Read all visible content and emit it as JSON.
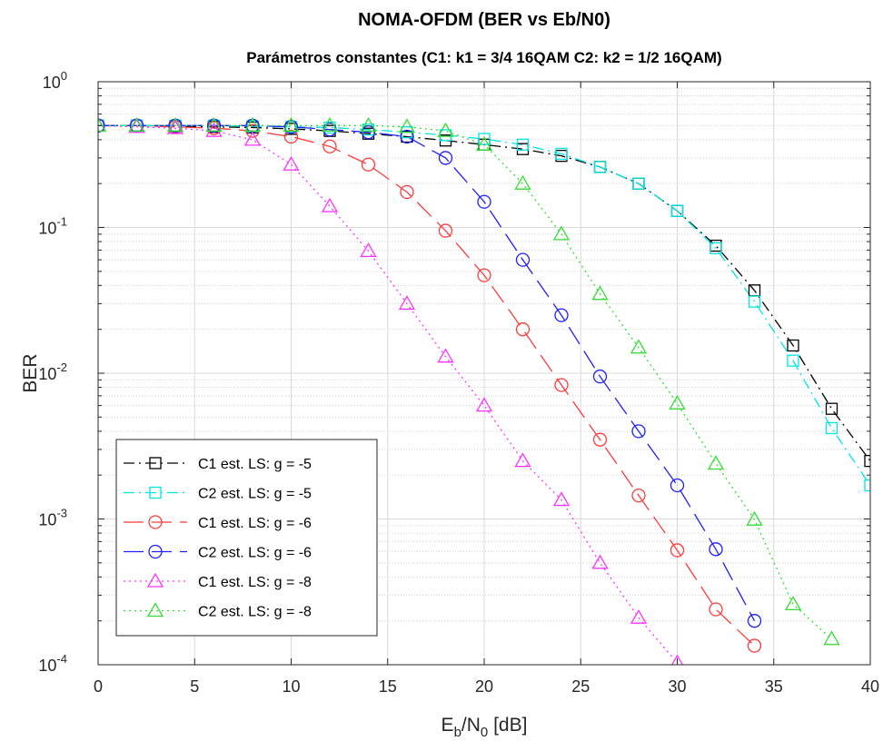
{
  "chart_data": {
    "type": "line",
    "title": "NOMA-OFDM (BER vs Eb/N0)",
    "subtitle": "Parámetros constantes (C1: k1 = 3/4 16QAM  C2: k2 =  1/2 16QAM)",
    "xlabel": {
      "main": "E",
      "sub1": "b",
      "mid": "/N",
      "sub2": "0",
      "tail": " [dB]"
    },
    "ylabel": "BER",
    "xlim": [
      0,
      40
    ],
    "ylim": [
      0.0001,
      1
    ],
    "yscale": "log",
    "grid": true,
    "minor_grid": true,
    "legend_position": "bottom-left",
    "x_ticks": [
      "0",
      "5",
      "10",
      "15",
      "20",
      "25",
      "30",
      "35",
      "40"
    ],
    "y_ticks": [
      {
        "base": "10",
        "exp": "-4"
      },
      {
        "base": "10",
        "exp": "-3"
      },
      {
        "base": "10",
        "exp": "-2"
      },
      {
        "base": "10",
        "exp": "-1"
      },
      {
        "base": "10",
        "exp": "0"
      }
    ],
    "series": [
      {
        "name": "C1 est. LS: g = -5",
        "color": "#000000",
        "line": "dashdot",
        "marker": "square",
        "x": [
          0,
          2,
          4,
          6,
          8,
          10,
          12,
          14,
          16,
          18,
          20,
          22,
          24,
          26,
          28,
          30,
          32,
          34,
          36,
          38,
          40
        ],
        "y": [
          0.5,
          0.5,
          0.495,
          0.49,
          0.485,
          0.475,
          0.46,
          0.44,
          0.42,
          0.395,
          0.37,
          0.345,
          0.31,
          0.26,
          0.2,
          0.13,
          0.075,
          0.037,
          0.0155,
          0.0057,
          0.0025
        ]
      },
      {
        "name": "C2 est. LS: g = -5",
        "color": "#00e5e5",
        "line": "dashdot",
        "marker": "square",
        "x": [
          0,
          2,
          4,
          6,
          8,
          10,
          12,
          14,
          16,
          18,
          20,
          22,
          24,
          26,
          28,
          30,
          32,
          34,
          36,
          38,
          40
        ],
        "y": [
          0.5,
          0.5,
          0.5,
          0.5,
          0.495,
          0.49,
          0.485,
          0.47,
          0.45,
          0.43,
          0.405,
          0.37,
          0.32,
          0.26,
          0.2,
          0.13,
          0.072,
          0.031,
          0.0122,
          0.0042,
          0.0017
        ]
      },
      {
        "name": "C1 est. LS: g = -6",
        "color": "#ff3b3b",
        "line": "dashed",
        "marker": "circle",
        "x": [
          0,
          2,
          4,
          6,
          8,
          10,
          12,
          14,
          16,
          18,
          20,
          22,
          24,
          26,
          28,
          30,
          32,
          34
        ],
        "y": [
          0.5,
          0.5,
          0.49,
          0.48,
          0.46,
          0.42,
          0.36,
          0.27,
          0.175,
          0.095,
          0.047,
          0.02,
          0.0083,
          0.0035,
          0.00145,
          0.00061,
          0.00024,
          0.000135
        ]
      },
      {
        "name": "C2 est. LS: g = -6",
        "color": "#1f1fff",
        "line": "dashed",
        "marker": "circle",
        "x": [
          0,
          2,
          4,
          6,
          8,
          10,
          12,
          14,
          16,
          18,
          20,
          22,
          24,
          26,
          28,
          30,
          32,
          34
        ],
        "y": [
          0.5,
          0.5,
          0.5,
          0.5,
          0.5,
          0.49,
          0.47,
          0.45,
          0.42,
          0.3,
          0.15,
          0.06,
          0.025,
          0.0095,
          0.004,
          0.0017,
          0.00062,
          0.0002
        ]
      },
      {
        "name": "C1 est. LS: g = -8",
        "color": "#ff33ff",
        "line": "dotted",
        "marker": "triangle",
        "x": [
          0,
          2,
          4,
          6,
          8,
          10,
          12,
          14,
          16,
          18,
          20,
          22,
          24,
          26,
          28,
          30
        ],
        "y": [
          0.5,
          0.49,
          0.48,
          0.46,
          0.4,
          0.27,
          0.14,
          0.069,
          0.03,
          0.013,
          0.006,
          0.0025,
          0.00135,
          0.0005,
          0.00021,
          0.000103
        ]
      },
      {
        "name": "C2 est. LS: g = -8",
        "color": "#33dd33",
        "line": "dotted",
        "marker": "triangle",
        "x": [
          0,
          2,
          4,
          6,
          8,
          10,
          12,
          14,
          16,
          18,
          20,
          22,
          24,
          26,
          28,
          30,
          32,
          34,
          36,
          38
        ],
        "y": [
          0.5,
          0.5,
          0.5,
          0.5,
          0.5,
          0.5,
          0.5,
          0.5,
          0.49,
          0.46,
          0.37,
          0.2,
          0.09,
          0.035,
          0.015,
          0.0062,
          0.0024,
          0.00099,
          0.00026,
          0.00015
        ]
      }
    ]
  }
}
